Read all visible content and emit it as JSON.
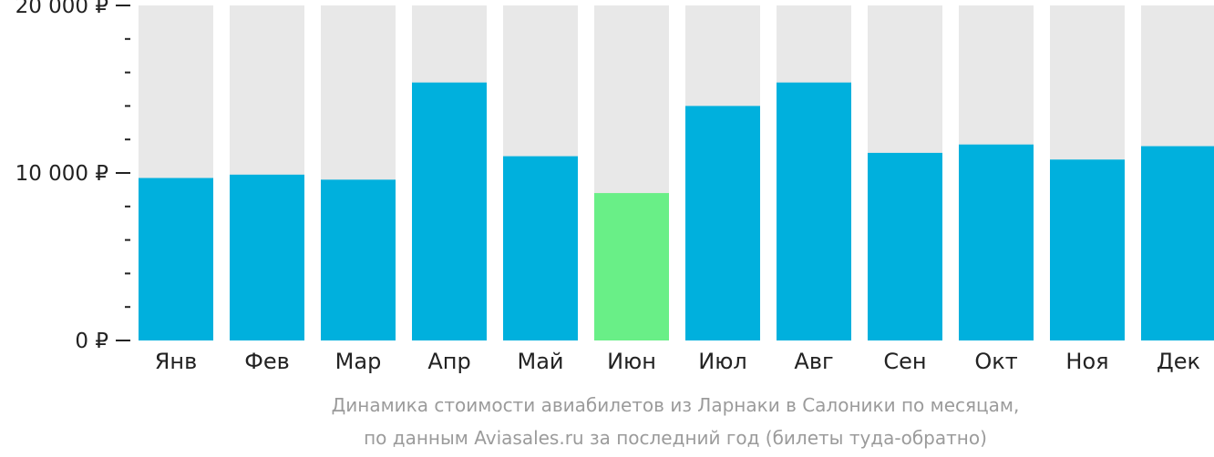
{
  "colors": {
    "bar": "#00b0dd",
    "highlight": "#69ef87",
    "background_bar": "#e8e8e8",
    "axis": "#222222",
    "caption": "#9b9b9b"
  },
  "caption": {
    "line1": "Динамика стоимости авиабилетов из Ларнаки в Салоники по месяцам,",
    "line2": "по данным Aviasales.ru за последний год (билеты туда-обратно)"
  },
  "chart_data": {
    "type": "bar",
    "categories": [
      "Янв",
      "Фев",
      "Мар",
      "Апр",
      "Май",
      "Июн",
      "Июл",
      "Авг",
      "Сен",
      "Окт",
      "Ноя",
      "Дек"
    ],
    "values": [
      9700,
      9900,
      9600,
      15400,
      11000,
      8800,
      14000,
      15400,
      11200,
      11700,
      10800,
      11600
    ],
    "highlight_category": "Июн",
    "ylim": [
      0,
      20000
    ],
    "yticks": [
      {
        "value": 0,
        "label": "0 ₽"
      },
      {
        "value": 10000,
        "label": "10 000 ₽"
      },
      {
        "value": 20000,
        "label": "20 000 ₽"
      }
    ],
    "minor_tick_step": 2000,
    "grid": false,
    "legend": "none"
  }
}
